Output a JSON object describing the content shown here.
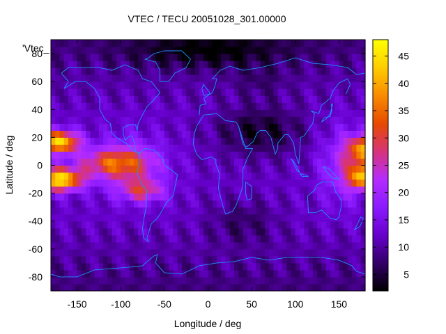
{
  "chart_data": {
    "type": "heatmap",
    "title": "VTEC / TECU 20051028_301.00000",
    "xlabel": "Longitude / deg",
    "ylabel": "Latitude / deg",
    "key_label": "'Vtec_",
    "xlim": [
      -180,
      180
    ],
    "ylim": [
      -90,
      90
    ],
    "x_ticks": [
      -150,
      -100,
      -50,
      0,
      50,
      100,
      150
    ],
    "y_ticks": [
      -80,
      -60,
      -40,
      -20,
      0,
      20,
      40,
      60,
      80
    ],
    "colorbar": {
      "range": [
        2,
        48
      ],
      "ticks": [
        5,
        10,
        15,
        20,
        25,
        30,
        35,
        40,
        45
      ],
      "palette": [
        "#000000",
        "#330066",
        "#6600cc",
        "#8a1aff",
        "#b42cff",
        "#d7337a",
        "#e64a00",
        "#f98a00",
        "#ffcc00",
        "#ffff00"
      ]
    },
    "grid": false,
    "overlay": "coastlines",
    "coastline_color": "#1e90ff",
    "field_description": {
      "lon_step": 5,
      "lat_step": 5
    }
  }
}
